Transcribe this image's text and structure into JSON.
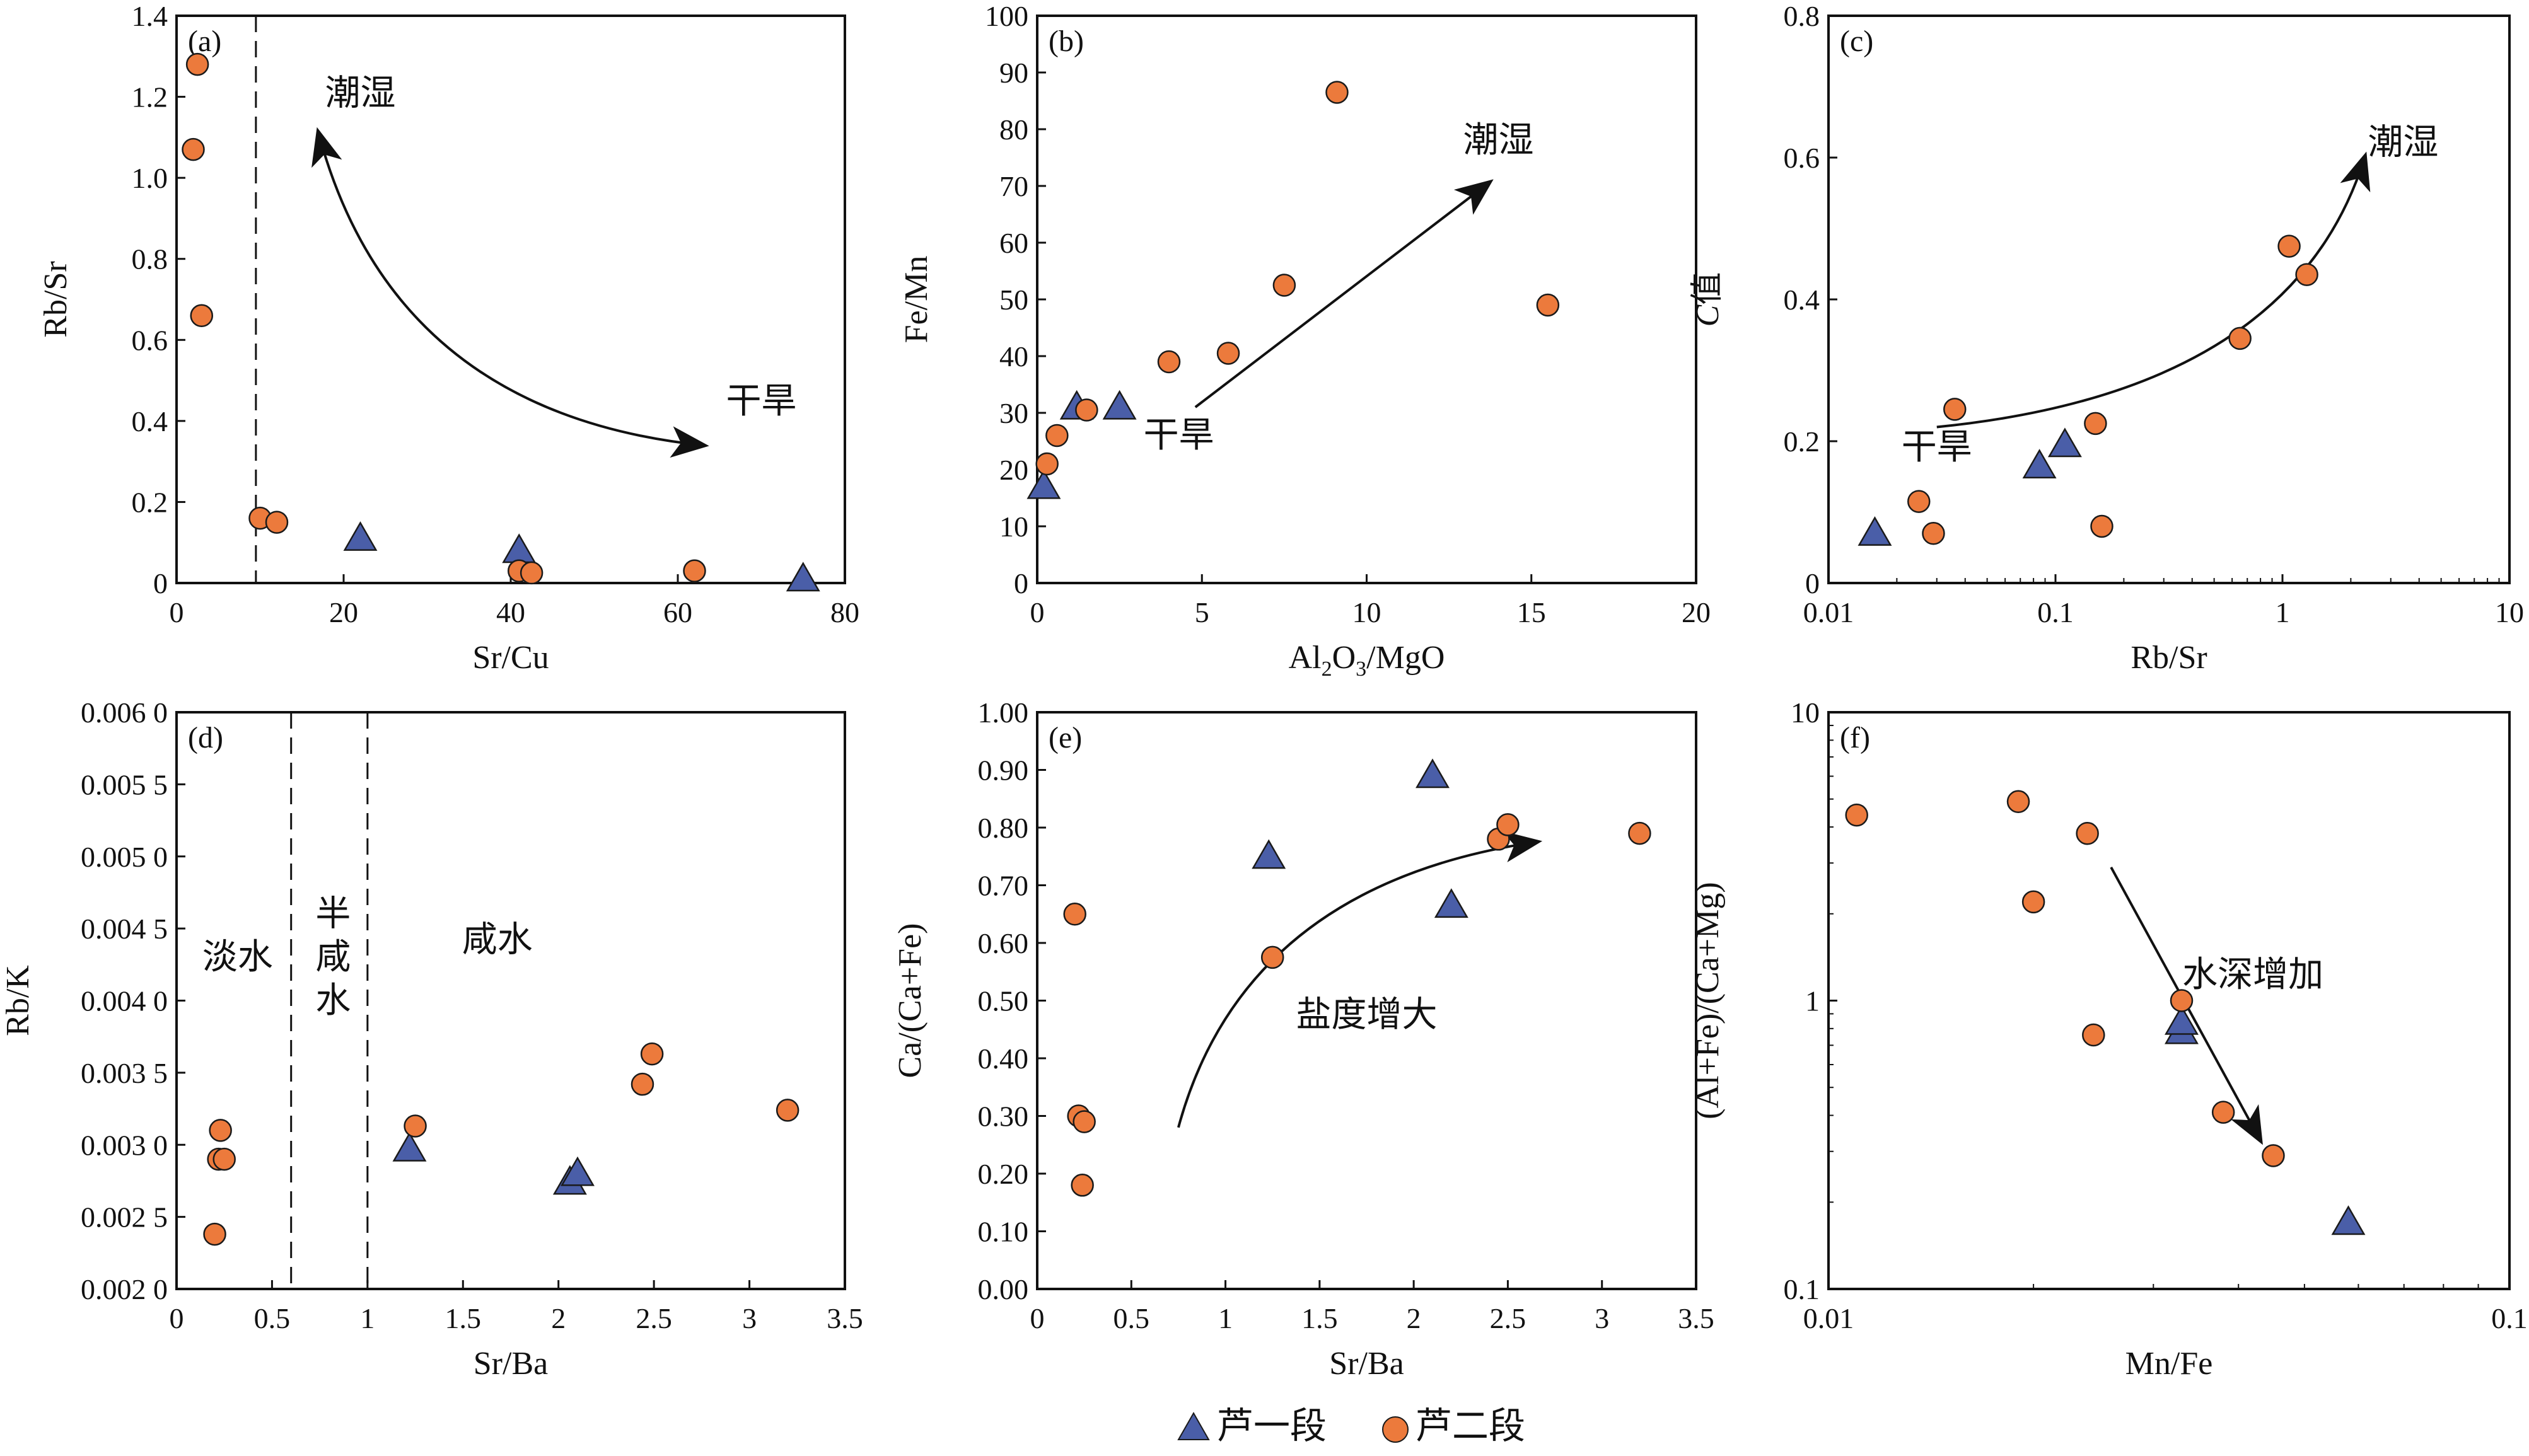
{
  "colors": {
    "series1": "#4a5ea8",
    "series2": "#ec7a3c",
    "outline": "#1a1a1a"
  },
  "legend": {
    "s1": "芦一段",
    "s2": "芦二段"
  },
  "chart_data": [
    {
      "id": "a",
      "panel_label": "(a)",
      "type": "scatter",
      "xlabel": "Sr/Cu",
      "ylabel": "Rb/Sr",
      "xlim": [
        0,
        80
      ],
      "ylim": [
        0,
        1.4
      ],
      "xticks": [
        0,
        20,
        40,
        60,
        80
      ],
      "xtick_labels": [
        "0",
        "20",
        "40",
        "60",
        "80"
      ],
      "yticks": [
        0,
        0.2,
        0.4,
        0.6,
        0.8,
        1.0,
        1.2,
        1.4
      ],
      "ytick_labels": [
        "0",
        "0.2",
        "0.4",
        "0.6",
        "0.8",
        "1.0",
        "1.2",
        "1.4"
      ],
      "vlines": [
        9.5
      ],
      "series": [
        {
          "key": "s1",
          "marker": "triangle",
          "x": [
            22,
            41,
            75
          ],
          "y": [
            0.11,
            0.08,
            0.01
          ]
        },
        {
          "key": "s2",
          "marker": "circle",
          "x": [
            2.5,
            2,
            3,
            10,
            12,
            41,
            42.5,
            62
          ],
          "y": [
            1.28,
            1.07,
            0.66,
            0.16,
            0.15,
            0.03,
            0.025,
            0.03
          ]
        }
      ],
      "annotations": [
        {
          "text": "潮湿",
          "x": 22,
          "y": 1.18
        },
        {
          "text": "干旱",
          "x": 70,
          "y": 0.42
        }
      ],
      "arrows": [
        {
          "kind": "curve",
          "from": [
            63,
            0.34
          ],
          "ctrl": [
            26,
            0.42
          ],
          "to": [
            17,
            1.11
          ],
          "double": true
        }
      ]
    },
    {
      "id": "b",
      "panel_label": "(b)",
      "type": "scatter",
      "xlabel": "Al2O3/MgO",
      "ylabel": "Fe/Mn",
      "xlim": [
        0,
        20
      ],
      "ylim": [
        0,
        100
      ],
      "xticks": [
        0,
        5,
        10,
        15,
        20
      ],
      "xtick_labels": [
        "0",
        "5",
        "10",
        "15",
        "20"
      ],
      "yticks": [
        0,
        10,
        20,
        30,
        40,
        50,
        60,
        70,
        80,
        90,
        100
      ],
      "ytick_labels": [
        "0",
        "10",
        "20",
        "30",
        "40",
        "50",
        "60",
        "70",
        "80",
        "90",
        "100"
      ],
      "vlines": [],
      "series": [
        {
          "key": "s1",
          "marker": "triangle",
          "x": [
            0.2,
            1.2,
            2.5
          ],
          "y": [
            17,
            31,
            31
          ]
        },
        {
          "key": "s2",
          "marker": "circle",
          "x": [
            0.3,
            0.6,
            1.5,
            4,
            5.8,
            7.5,
            9.1,
            15.5
          ],
          "y": [
            21,
            26,
            30.5,
            39,
            40.5,
            52.5,
            86.5,
            49
          ]
        }
      ],
      "annotations": [
        {
          "text": "潮湿",
          "x": 14,
          "y": 76
        },
        {
          "text": "干旱",
          "x": 4.3,
          "y": 24
        }
      ],
      "arrows": [
        {
          "kind": "line",
          "from": [
            4.8,
            31
          ],
          "to": [
            13.7,
            70.5
          ]
        }
      ]
    },
    {
      "id": "c",
      "panel_label": "(c)",
      "type": "scatter",
      "xlabel": "Rb/Sr",
      "ylabel": "C值",
      "xscale": "log",
      "xlim": [
        0.01,
        10
      ],
      "ylim": [
        0,
        0.8
      ],
      "xticks": [
        0.01,
        0.1,
        1,
        10
      ],
      "xtick_labels": [
        "0.01",
        "0.1",
        "1",
        "10"
      ],
      "yticks": [
        0,
        0.2,
        0.4,
        0.6,
        0.8
      ],
      "ytick_labels": [
        "0",
        "0.2",
        "0.4",
        "0.6",
        "0.8"
      ],
      "vlines": [],
      "series": [
        {
          "key": "s1",
          "marker": "triangle",
          "x": [
            0.016,
            0.085,
            0.11
          ],
          "y": [
            0.07,
            0.165,
            0.195
          ]
        },
        {
          "key": "s2",
          "marker": "circle",
          "x": [
            0.025,
            0.029,
            0.036,
            0.15,
            0.16,
            0.65,
            1.07,
            1.28
          ],
          "y": [
            0.115,
            0.07,
            0.245,
            0.225,
            0.08,
            0.345,
            0.475,
            0.435
          ]
        }
      ],
      "annotations": [
        {
          "text": "潮湿",
          "x": 3.4,
          "y": 0.605
        },
        {
          "text": "干旱",
          "x": 0.03,
          "y": 0.175
        }
      ],
      "arrows": [
        {
          "kind": "curve",
          "from": [
            0.03,
            0.22
          ],
          "ctrl": [
            1.1,
            0.27
          ],
          "to": [
            2.3,
            0.6
          ],
          "double": false
        }
      ]
    },
    {
      "id": "d",
      "panel_label": "(d)",
      "type": "scatter",
      "xlabel": "Sr/Ba",
      "ylabel": "Rb/K",
      "xlim": [
        0,
        3.5
      ],
      "ylim": [
        0.002,
        0.006
      ],
      "xticks": [
        0,
        0.5,
        1,
        1.5,
        2,
        2.5,
        3,
        3.5
      ],
      "xtick_labels": [
        "0",
        "0.5",
        "1",
        "1.5",
        "2",
        "2.5",
        "3",
        "3.5"
      ],
      "yticks": [
        0.002,
        0.0025,
        0.003,
        0.0035,
        0.004,
        0.0045,
        0.005,
        0.0055,
        0.006
      ],
      "ytick_labels": [
        "0.002 0",
        "0.002 5",
        "0.003 0",
        "0.003 5",
        "0.004 0",
        "0.004 5",
        "0.005 0",
        "0.005 5",
        "0.006 0"
      ],
      "vlines": [
        0.6,
        1.0
      ],
      "series": [
        {
          "key": "s1",
          "marker": "triangle",
          "x": [
            1.22,
            2.06,
            2.1
          ],
          "y": [
            0.00297,
            0.00274,
            0.0028
          ]
        },
        {
          "key": "s2",
          "marker": "circle",
          "x": [
            0.2,
            0.22,
            0.25,
            0.23,
            1.25,
            2.44,
            2.49,
            3.2
          ],
          "y": [
            0.00238,
            0.0029,
            0.0029,
            0.0031,
            0.00313,
            0.00342,
            0.00363,
            0.00324
          ]
        }
      ],
      "annotations": [
        {
          "text": "淡水",
          "x": 0.32,
          "y": 0.00422
        },
        {
          "text": "半",
          "x": 0.82,
          "y": 0.00452
        },
        {
          "text": "咸",
          "x": 0.82,
          "y": 0.00422
        },
        {
          "text": "水",
          "x": 0.82,
          "y": 0.00392
        },
        {
          "text": "咸水",
          "x": 1.68,
          "y": 0.00434
        }
      ],
      "arrows": []
    },
    {
      "id": "e",
      "panel_label": "(e)",
      "type": "scatter",
      "xlabel": "Sr/Ba",
      "ylabel": "Ca/(Ca+Fe)",
      "xlim": [
        0,
        3.5
      ],
      "ylim": [
        0,
        1.0
      ],
      "xticks": [
        0,
        0.5,
        1,
        1.5,
        2,
        2.5,
        3,
        3.5
      ],
      "xtick_labels": [
        "0",
        "0.5",
        "1",
        "1.5",
        "2",
        "2.5",
        "3",
        "3.5"
      ],
      "yticks": [
        0,
        0.1,
        0.2,
        0.3,
        0.4,
        0.5,
        0.6,
        0.7,
        0.8,
        0.9,
        1.0
      ],
      "ytick_labels": [
        "0.00",
        "0.10",
        "0.20",
        "0.30",
        "0.40",
        "0.50",
        "0.60",
        "0.70",
        "0.80",
        "0.90",
        "1.00"
      ],
      "vlines": [],
      "series": [
        {
          "key": "s1",
          "marker": "triangle",
          "x": [
            1.23,
            2.1,
            2.2
          ],
          "y": [
            0.75,
            0.89,
            0.665
          ]
        },
        {
          "key": "s2",
          "marker": "circle",
          "x": [
            0.2,
            0.22,
            0.25,
            0.24,
            1.25,
            2.45,
            2.5,
            3.2
          ],
          "y": [
            0.65,
            0.3,
            0.29,
            0.18,
            0.575,
            0.78,
            0.805,
            0.79
          ]
        }
      ],
      "annotations": [
        {
          "text": "盐度增大",
          "x": 1.75,
          "y": 0.455
        }
      ],
      "arrows": [
        {
          "kind": "curve",
          "from": [
            0.75,
            0.28
          ],
          "ctrl": [
            1.1,
            0.7
          ],
          "to": [
            2.65,
            0.775
          ],
          "double": false
        }
      ]
    },
    {
      "id": "f",
      "panel_label": "(f)",
      "type": "scatter",
      "xlabel": "Mn/Fe",
      "ylabel": "(Al+Fe)/(Ca+Mg)",
      "xscale": "log",
      "yscale": "log",
      "xlim": [
        0.01,
        0.1
      ],
      "ylim": [
        0.1,
        10
      ],
      "xticks": [
        0.01,
        0.1
      ],
      "xtick_labels": [
        "0.01",
        "0.1"
      ],
      "yticks": [
        0.1,
        1,
        10
      ],
      "ytick_labels": [
        "0.1",
        "1",
        "10"
      ],
      "vlines": [],
      "series": [
        {
          "key": "s1",
          "marker": "triangle",
          "x": [
            0.033,
            0.033,
            0.058
          ],
          "y": [
            0.78,
            0.84,
            0.17
          ]
        },
        {
          "key": "s2",
          "marker": "circle",
          "x": [
            0.011,
            0.019,
            0.02,
            0.024,
            0.0245,
            0.033,
            0.038,
            0.045
          ],
          "y": [
            4.4,
            4.9,
            2.2,
            3.8,
            0.76,
            1.0,
            0.41,
            0.29
          ]
        }
      ],
      "annotations": [
        {
          "text": "水深增加",
          "x": 0.042,
          "y": 1.12
        }
      ],
      "arrows": [
        {
          "kind": "line",
          "from": [
            0.026,
            2.9
          ],
          "to": [
            0.043,
            0.33
          ]
        }
      ]
    }
  ]
}
